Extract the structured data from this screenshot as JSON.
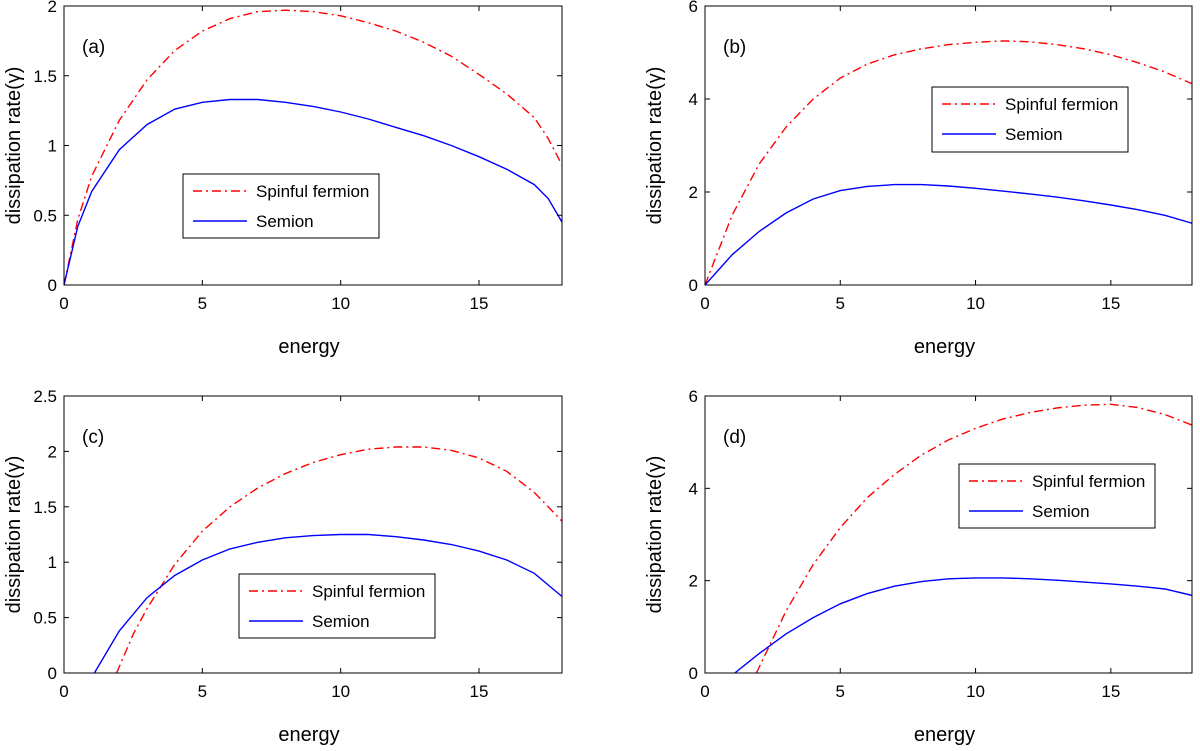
{
  "chart_data": [
    {
      "type": "line",
      "panel_label": "(a)",
      "xlabel": "energy",
      "ylabel": "dissipation rate(γ)",
      "xlim": [
        0,
        18
      ],
      "ylim": [
        0,
        2
      ],
      "xticks": [
        "0",
        "5",
        "10",
        "15"
      ],
      "yticks": [
        "0",
        "0.5",
        "1",
        "1.5",
        "2"
      ],
      "legend": "center",
      "series": [
        {
          "name": "Spinful fermion",
          "color": "#ff0000",
          "style": "dash-dot",
          "x": [
            0,
            0.5,
            1,
            2,
            3,
            4,
            5,
            6,
            7,
            8,
            9,
            10,
            11,
            12,
            13,
            14,
            15,
            16,
            17,
            17.5,
            18
          ],
          "y": [
            0,
            0.47,
            0.78,
            1.18,
            1.47,
            1.68,
            1.82,
            1.91,
            1.96,
            1.97,
            1.96,
            1.93,
            1.88,
            1.82,
            1.74,
            1.64,
            1.51,
            1.37,
            1.2,
            1.05,
            0.86
          ]
        },
        {
          "name": "Semion",
          "color": "#0000ff",
          "style": "solid",
          "x": [
            0,
            0.5,
            1,
            2,
            3,
            4,
            5,
            6,
            7,
            8,
            9,
            10,
            11,
            12,
            13,
            14,
            15,
            16,
            17,
            17.5,
            18
          ],
          "y": [
            0,
            0.42,
            0.67,
            0.97,
            1.15,
            1.26,
            1.31,
            1.33,
            1.33,
            1.31,
            1.28,
            1.24,
            1.19,
            1.13,
            1.07,
            1.0,
            0.92,
            0.83,
            0.72,
            0.62,
            0.45
          ]
        }
      ]
    },
    {
      "type": "line",
      "panel_label": "(b)",
      "xlabel": "energy",
      "ylabel": "dissipation rate(γ)",
      "xlim": [
        0,
        18
      ],
      "ylim": [
        0,
        6
      ],
      "xticks": [
        "0",
        "5",
        "10",
        "15"
      ],
      "yticks": [
        "0",
        "2",
        "4",
        "6"
      ],
      "legend": "top-right",
      "series": [
        {
          "name": "Spinful fermion",
          "color": "#ff0000",
          "style": "dash-dot",
          "x": [
            0,
            1,
            2,
            3,
            4,
            5,
            6,
            7,
            8,
            9,
            10,
            11,
            12,
            13,
            14,
            15,
            16,
            17,
            18
          ],
          "y": [
            0,
            1.5,
            2.6,
            3.4,
            4.0,
            4.45,
            4.75,
            4.95,
            5.08,
            5.17,
            5.22,
            5.25,
            5.23,
            5.17,
            5.08,
            4.95,
            4.78,
            4.58,
            4.33
          ]
        },
        {
          "name": "Semion",
          "color": "#0000ff",
          "style": "solid",
          "x": [
            0,
            1,
            2,
            3,
            4,
            5,
            6,
            7,
            8,
            9,
            10,
            11,
            12,
            13,
            14,
            15,
            16,
            17,
            18
          ],
          "y": [
            0,
            0.65,
            1.15,
            1.55,
            1.85,
            2.03,
            2.12,
            2.16,
            2.16,
            2.13,
            2.08,
            2.02,
            1.96,
            1.89,
            1.81,
            1.72,
            1.62,
            1.5,
            1.33
          ]
        }
      ]
    },
    {
      "type": "line",
      "panel_label": "(c)",
      "xlabel": "energy",
      "ylabel": "dissipation rate(γ)",
      "xlim": [
        0,
        18
      ],
      "ylim": [
        0,
        2.5
      ],
      "xticks": [
        "0",
        "5",
        "10",
        "15"
      ],
      "yticks": [
        "0",
        "0.5",
        "1",
        "1.5",
        "2",
        "2.5"
      ],
      "legend": "bottom-right",
      "series": [
        {
          "name": "Spinful fermion",
          "color": "#ff0000",
          "style": "dash-dot",
          "x": [
            1.9,
            2.5,
            3,
            4,
            5,
            6,
            7,
            8,
            9,
            10,
            11,
            12,
            13,
            14,
            15,
            16,
            17,
            18
          ],
          "y": [
            0,
            0.35,
            0.58,
            0.98,
            1.28,
            1.5,
            1.67,
            1.8,
            1.9,
            1.97,
            2.02,
            2.04,
            2.04,
            2.01,
            1.94,
            1.82,
            1.63,
            1.37
          ]
        },
        {
          "name": "Semion",
          "color": "#0000ff",
          "style": "solid",
          "x": [
            1.1,
            2,
            3,
            4,
            5,
            6,
            7,
            8,
            9,
            10,
            11,
            12,
            13,
            14,
            15,
            16,
            17,
            18
          ],
          "y": [
            0,
            0.38,
            0.68,
            0.88,
            1.02,
            1.12,
            1.18,
            1.22,
            1.24,
            1.25,
            1.25,
            1.23,
            1.2,
            1.16,
            1.1,
            1.02,
            0.9,
            0.69
          ]
        }
      ]
    },
    {
      "type": "line",
      "panel_label": "(d)",
      "xlabel": "energy",
      "ylabel": "dissipation rate(γ)",
      "xlim": [
        0,
        18
      ],
      "ylim": [
        0,
        6
      ],
      "xticks": [
        "0",
        "5",
        "10",
        "15"
      ],
      "yticks": [
        "0",
        "2",
        "4",
        "6"
      ],
      "legend": "top-right",
      "series": [
        {
          "name": "Spinful fermion",
          "color": "#ff0000",
          "style": "dash-dot",
          "x": [
            1.9,
            3,
            4,
            5,
            6,
            7,
            8,
            9,
            10,
            11,
            12,
            13,
            14,
            15,
            16,
            17,
            18
          ],
          "y": [
            0,
            1.35,
            2.35,
            3.15,
            3.8,
            4.3,
            4.72,
            5.05,
            5.3,
            5.5,
            5.64,
            5.74,
            5.8,
            5.82,
            5.75,
            5.6,
            5.37
          ]
        },
        {
          "name": "Semion",
          "color": "#0000ff",
          "style": "solid",
          "x": [
            1.1,
            2,
            3,
            4,
            5,
            6,
            7,
            8,
            9,
            10,
            11,
            12,
            13,
            14,
            15,
            16,
            17,
            18
          ],
          "y": [
            0,
            0.42,
            0.85,
            1.2,
            1.5,
            1.72,
            1.88,
            1.98,
            2.04,
            2.06,
            2.06,
            2.04,
            2.01,
            1.97,
            1.93,
            1.88,
            1.82,
            1.68
          ]
        }
      ]
    }
  ]
}
